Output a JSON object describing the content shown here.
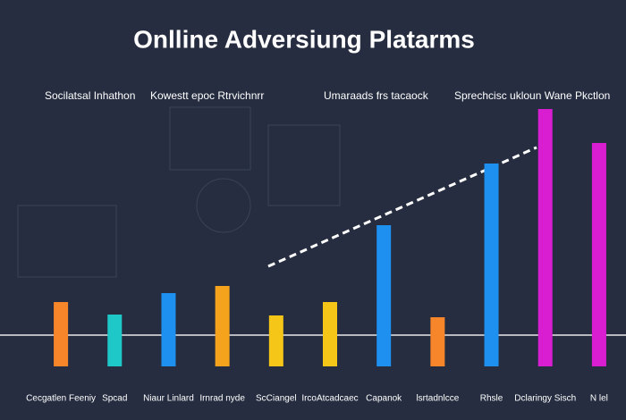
{
  "chart_data": {
    "type": "bar",
    "title": "Onlline Adversiung Platarms",
    "subtitles": [
      "Socilatsal Inhathon",
      "Kowestt epoc Rtrvichnrr",
      "Umaraads frs tacaock",
      "Sprechcisc ukloun Wane Pkctlon"
    ],
    "categories": [
      "Cecgatlen Feeniy",
      "Spcad",
      "Niaur Linlard",
      "Irnrad nyde",
      "ScCiangel",
      "IrcoAtcadcaec",
      "Capanok",
      "lsrtadnlcce",
      "Rhsle",
      "Dclaringy Sisch",
      "N lel"
    ],
    "values": [
      72,
      58,
      82,
      90,
      57,
      72,
      158,
      55,
      227,
      288,
      250
    ],
    "colors": [
      "#f7862a",
      "#1ec8c8",
      "#1e90f0",
      "#f5a21c",
      "#f5c518",
      "#f5c518",
      "#1e90f0",
      "#f7862a",
      "#1e90f0",
      "#d81ed0",
      "#d81ed0"
    ],
    "ylim": [
      0,
      300
    ]
  }
}
